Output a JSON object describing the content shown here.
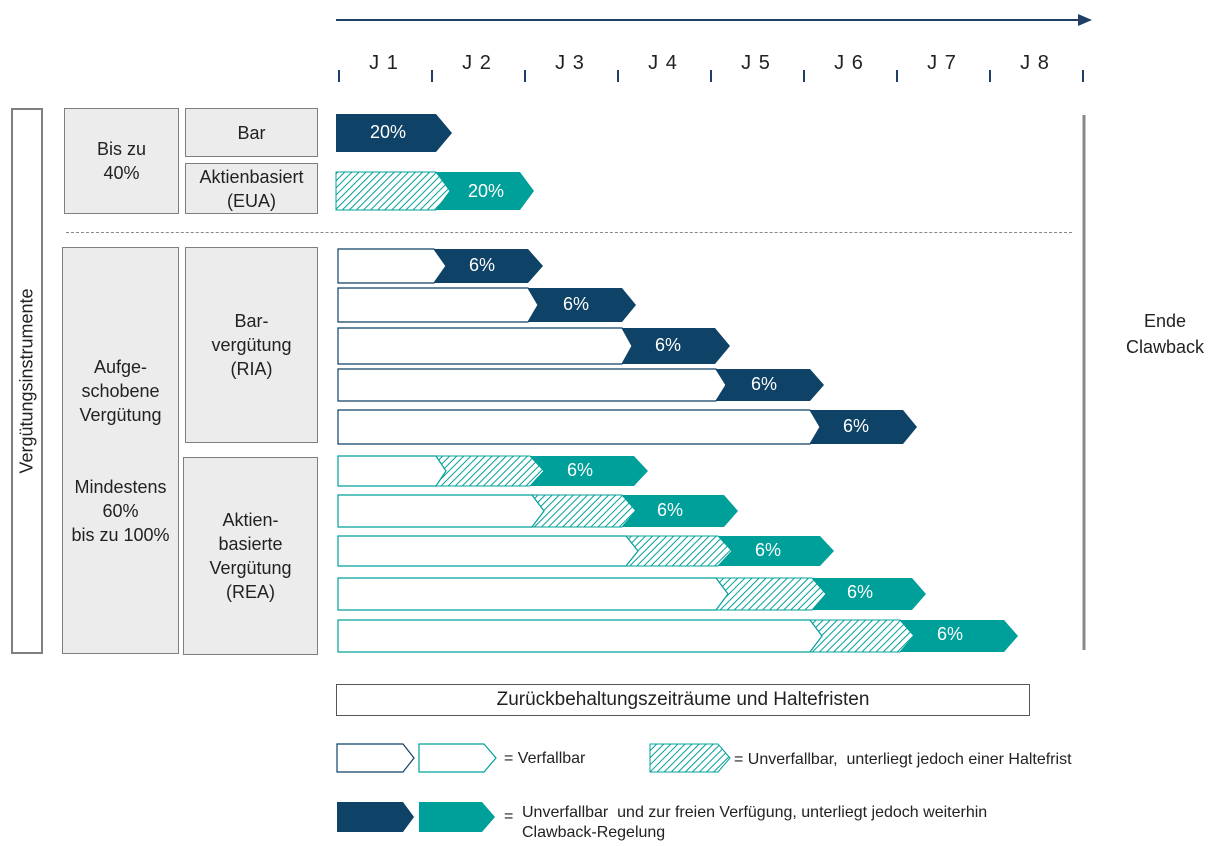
{
  "years": [
    "J 1",
    "J 2",
    "J 3",
    "J 4",
    "J 5",
    "J 6",
    "J 7",
    "J 8"
  ],
  "vertical_label": "Vergütungsinstrumente",
  "upfront": {
    "share": "Bis zu\n40%",
    "cash": "Bar",
    "shares": "Aktienbasiert\n(EUA)",
    "cash_pct": "20%",
    "shares_pct": "20%"
  },
  "deferred": {
    "share": "Aufge-\nschobene\nVergütung\n\n\nMindestens\n60%\nbis zu 100%",
    "cash": "Bar-\nvergütung\n(RIA)",
    "shares": "Aktien-\nbasierte\nVergütung\n(REA)",
    "cash_pcts": [
      "6%",
      "6%",
      "6%",
      "6%",
      "6%"
    ],
    "share_pcts": [
      "6%",
      "6%",
      "6%",
      "6%",
      "6%"
    ]
  },
  "end_label": "Ende\nClawback",
  "bottom_label": "Zurückbehaltungszeiträume und Haltefristen",
  "legend": {
    "forfeitable": "= Verfallbar",
    "vested_hold": "= Unverfallbar,  unterliegt jedoch einer Haltefrist",
    "vested_free_1": "Unverfallbar  und zur freien Verfügung, unterliegt jedoch weiterhin",
    "vested_free_2": "Clawback-Regelung",
    "vested_free_eq": "="
  },
  "colors": {
    "dark": "#0e4266",
    "teal": "#00a09a",
    "line": "#1f3f66"
  }
}
